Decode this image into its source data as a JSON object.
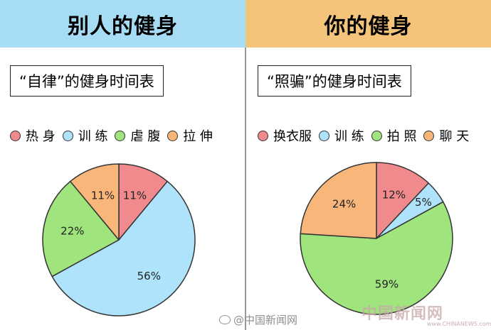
{
  "colors": {
    "left_header_bg": "#a6ddf5",
    "right_header_bg": "#f5c47b",
    "red": "#f08a8d",
    "blue": "#aee3fb",
    "green": "#9fe47d",
    "orange": "#f9b67a",
    "stroke": "#333333"
  },
  "left": {
    "header": "别人的健身",
    "subtitle": "“自律”的健身时间表",
    "legend": [
      {
        "label": "热 身",
        "color": "#f08a8d"
      },
      {
        "label": "训 练",
        "color": "#aee3fb"
      },
      {
        "label": "虐 腹",
        "color": "#9fe47d"
      },
      {
        "label": "拉 伸",
        "color": "#f9b67a"
      }
    ]
  },
  "right": {
    "header": "你的健身",
    "subtitle": "“照骗”的健身时间表",
    "legend": [
      {
        "label": "换衣服",
        "color": "#f08a8d"
      },
      {
        "label": "训 练",
        "color": "#aee3fb"
      },
      {
        "label": "拍 照",
        "color": "#9fe47d"
      },
      {
        "label": "聊 天",
        "color": "#f9b67a"
      }
    ]
  },
  "chart_data": [
    {
      "type": "pie",
      "title": "“自律”的健身时间表",
      "categories": [
        "热身",
        "训练",
        "虐腹",
        "拉伸"
      ],
      "values": [
        11,
        56,
        22,
        11
      ],
      "labels": [
        "11%",
        "56%",
        "22%",
        "11%"
      ],
      "colors": [
        "#f08a8d",
        "#aee3fb",
        "#9fe47d",
        "#f9b67a"
      ],
      "legend": "top"
    },
    {
      "type": "pie",
      "title": "“照骗”的健身时间表",
      "categories": [
        "换衣服",
        "训练",
        "拍照",
        "聊天"
      ],
      "values": [
        12,
        5,
        59,
        24
      ],
      "labels": [
        "12%",
        "5%",
        "59%",
        "24%"
      ],
      "colors": [
        "#f08a8d",
        "#aee3fb",
        "#9fe47d",
        "#f9b67a"
      ],
      "legend": "top"
    }
  ],
  "watermarks": {
    "weibo": "@中国新闻网",
    "site": "中国新闻网",
    "site_sub": "www.CHINANEWS.com"
  }
}
